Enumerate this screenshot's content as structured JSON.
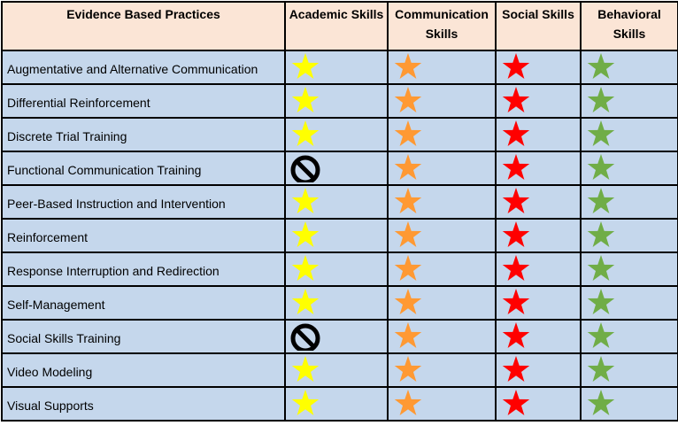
{
  "columns": [
    {
      "key": "practice",
      "label": "Evidence Based Practices"
    },
    {
      "key": "academic",
      "label": "Academic Skills"
    },
    {
      "key": "communication",
      "label": "Communication Skills"
    },
    {
      "key": "social",
      "label": "Social Skills"
    },
    {
      "key": "behavioral",
      "label": "Behavioral Skills"
    }
  ],
  "colors": {
    "header_bg": "#fbe5d6",
    "row_bg": "#c5d7ec",
    "academic_star": "#ffff00",
    "communication_star": "#ff9933",
    "social_star": "#ff0000",
    "behavioral_star": "#70ad47",
    "no_icon": "#000000"
  },
  "rows": [
    {
      "practice": "Augmentative and Alternative Communication",
      "academic": "star-icon",
      "communication": "star-icon",
      "social": "star-icon",
      "behavioral": "star-icon"
    },
    {
      "practice": "Differential Reinforcement",
      "academic": "star-icon",
      "communication": "star-icon",
      "social": "star-icon",
      "behavioral": "star-icon"
    },
    {
      "practice": "Discrete Trial Training",
      "academic": "star-icon",
      "communication": "star-icon",
      "social": "star-icon",
      "behavioral": "star-icon"
    },
    {
      "practice": "Functional Communication Training",
      "academic": "no-symbol-icon",
      "communication": "star-icon",
      "social": "star-icon",
      "behavioral": "star-icon"
    },
    {
      "practice": "Peer-Based Instruction and Intervention",
      "academic": "star-icon",
      "communication": "star-icon",
      "social": "star-icon",
      "behavioral": "star-icon"
    },
    {
      "practice": "Reinforcement",
      "academic": "star-icon",
      "communication": "star-icon",
      "social": "star-icon",
      "behavioral": "star-icon"
    },
    {
      "practice": "Response Interruption and Redirection",
      "academic": "star-icon",
      "communication": "star-icon",
      "social": "star-icon",
      "behavioral": "star-icon"
    },
    {
      "practice": "Self-Management",
      "academic": "star-icon",
      "communication": "star-icon",
      "social": "star-icon",
      "behavioral": "star-icon"
    },
    {
      "practice": "Social Skills Training",
      "academic": "no-symbol-icon",
      "communication": "star-icon",
      "social": "star-icon",
      "behavioral": "star-icon"
    },
    {
      "practice": "Video Modeling",
      "academic": "star-icon",
      "communication": "star-icon",
      "social": "star-icon",
      "behavioral": "star-icon"
    },
    {
      "practice": "Visual Supports",
      "academic": "star-icon",
      "communication": "star-icon",
      "social": "star-icon",
      "behavioral": "star-icon"
    }
  ]
}
